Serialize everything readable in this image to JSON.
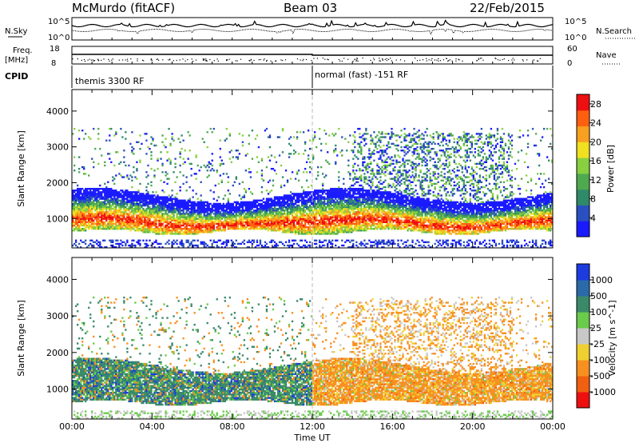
{
  "header": {
    "station": "McMurdo (fitACF)",
    "beam": "Beam 03",
    "date": "22/Feb/2015"
  },
  "top_panels": {
    "nsky_label": "N.Sky",
    "nsearch_label": "N.Search",
    "nsky_ticks": [
      "10^5",
      "10^0"
    ],
    "nsearch_ticks": [
      "10^5",
      "10^0"
    ],
    "freq_label": "Freq.",
    "freq_unit": "[MHz]",
    "freq_ticks": [
      "18",
      "8"
    ],
    "nave_label": "Nave",
    "nave_ticks": [
      "60",
      "0"
    ],
    "cpid_label": "CPID",
    "cpid_segments": [
      {
        "label": "themis 3300 RF",
        "start_hour": 0
      },
      {
        "label": "normal (fast) -151 RF",
        "start_hour": 12
      }
    ]
  },
  "chart_data": [
    {
      "type": "heatmap",
      "name": "power-panel",
      "ylabel": "Slant Range [km]",
      "xlabel": "Time UT",
      "x_ticks": [
        "00:00",
        "04:00",
        "08:00",
        "12:00",
        "16:00",
        "20:00",
        "00:00"
      ],
      "x_range_hours": [
        0,
        24
      ],
      "y_ticks": [
        1000,
        2000,
        3000,
        4000
      ],
      "ylim": [
        180,
        4600
      ],
      "colorbar": {
        "label": "Power [dB]",
        "ticks": [
          4,
          8,
          12,
          16,
          20,
          24,
          28
        ],
        "range": [
          0,
          30
        ],
        "colors": [
          "#1a1aff",
          "#2a4fc0",
          "#2f8a6a",
          "#4faa4f",
          "#88d040",
          "#f0e020",
          "#f8a020",
          "#ff6010",
          "#ee1010"
        ]
      }
    },
    {
      "type": "heatmap",
      "name": "velocity-panel",
      "ylabel": "Slant Range [km]",
      "xlabel": "Time UT",
      "x_ticks": [
        "00:00",
        "04:00",
        "08:00",
        "12:00",
        "16:00",
        "20:00",
        "00:00"
      ],
      "x_range_hours": [
        0,
        24
      ],
      "y_ticks": [
        1000,
        2000,
        3000,
        4000
      ],
      "ylim": [
        180,
        4600
      ],
      "colorbar": {
        "label": "Velocity [m s^-1]",
        "ticks": [
          1000,
          500,
          100,
          25,
          -25,
          -100,
          -500,
          -1000
        ],
        "colors": [
          "#1c3ce0",
          "#2a6aa8",
          "#3a8a6a",
          "#6acc4a",
          "#c8c8c8",
          "#f0d030",
          "#f89020",
          "#f06010",
          "#ee1010"
        ]
      }
    }
  ]
}
